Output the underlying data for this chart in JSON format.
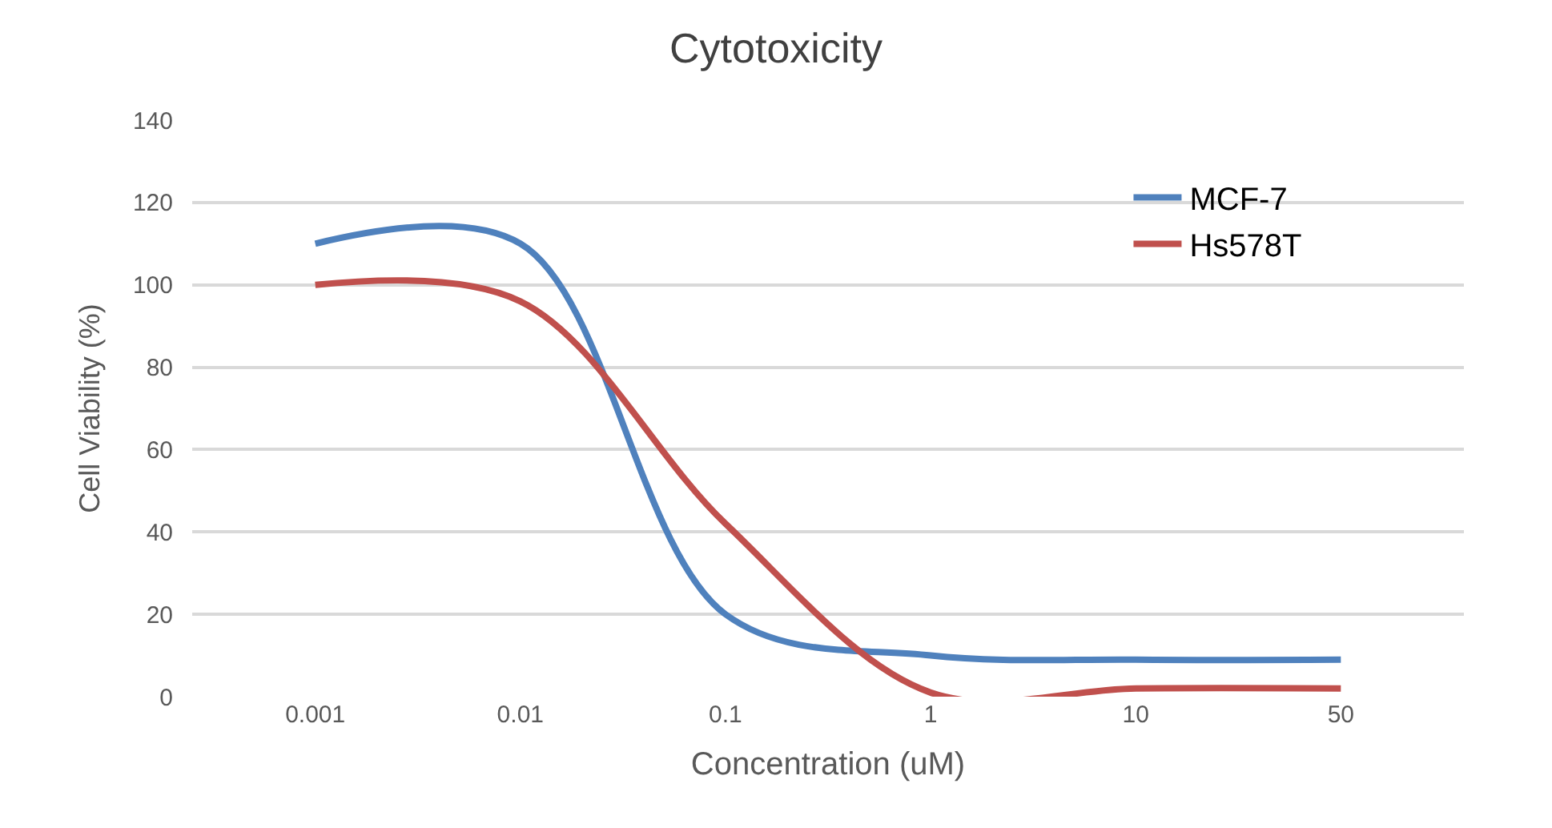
{
  "chart_data": {
    "type": "line",
    "title": "Cytotoxicity",
    "xlabel": "Concentration (uM)",
    "ylabel": "Cell Viability (%)",
    "categories": [
      "0.001",
      "0.01",
      "0.1",
      "1",
      "10",
      "50"
    ],
    "series": [
      {
        "name": "MCF-7",
        "color": "#4f81bd",
        "values": [
          110,
          110,
          20,
          10,
          9,
          9
        ]
      },
      {
        "name": "Hs578T",
        "color": "#c0504d",
        "values": [
          100,
          96,
          42,
          1,
          2,
          2
        ]
      }
    ],
    "ylim": [
      0,
      140
    ],
    "yticks": [
      0,
      20,
      40,
      60,
      80,
      100,
      120,
      140
    ],
    "grid": "y",
    "legend": "top right",
    "marker": "none",
    "line_style": "solid"
  }
}
